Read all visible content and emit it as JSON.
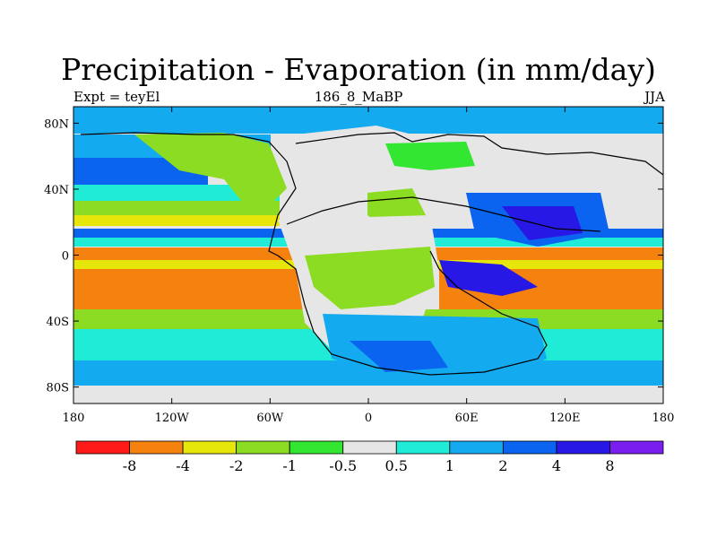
{
  "title": "Precipitation - Evaporation (in mm/day)",
  "subtitle_left": "Expt = teyEl",
  "subtitle_center": "186_8_MaBP",
  "subtitle_right": "JJA",
  "map": {
    "lon_range": [
      -180,
      180
    ],
    "lat_range": [
      -90,
      90
    ],
    "lon_ticks": [
      "180",
      "120W",
      "60W",
      "0",
      "60E",
      "120E",
      "180"
    ],
    "lat_ticks": [
      "80N",
      "40N",
      "0",
      "40S",
      "80S"
    ],
    "background_color": "#e6e6e6"
  },
  "colorbar": {
    "colors": [
      "#ff1a1a",
      "#f5820f",
      "#e6e60a",
      "#8cdc23",
      "#32e632",
      "#e6e6e6",
      "#20ebd7",
      "#14aaf0",
      "#0a64f0",
      "#2818e6",
      "#7a1ef0"
    ],
    "labels": [
      "-8",
      "-4",
      "-2",
      "-1",
      "-0.5",
      "0.5",
      "1",
      "2",
      "4",
      "8"
    ]
  }
}
